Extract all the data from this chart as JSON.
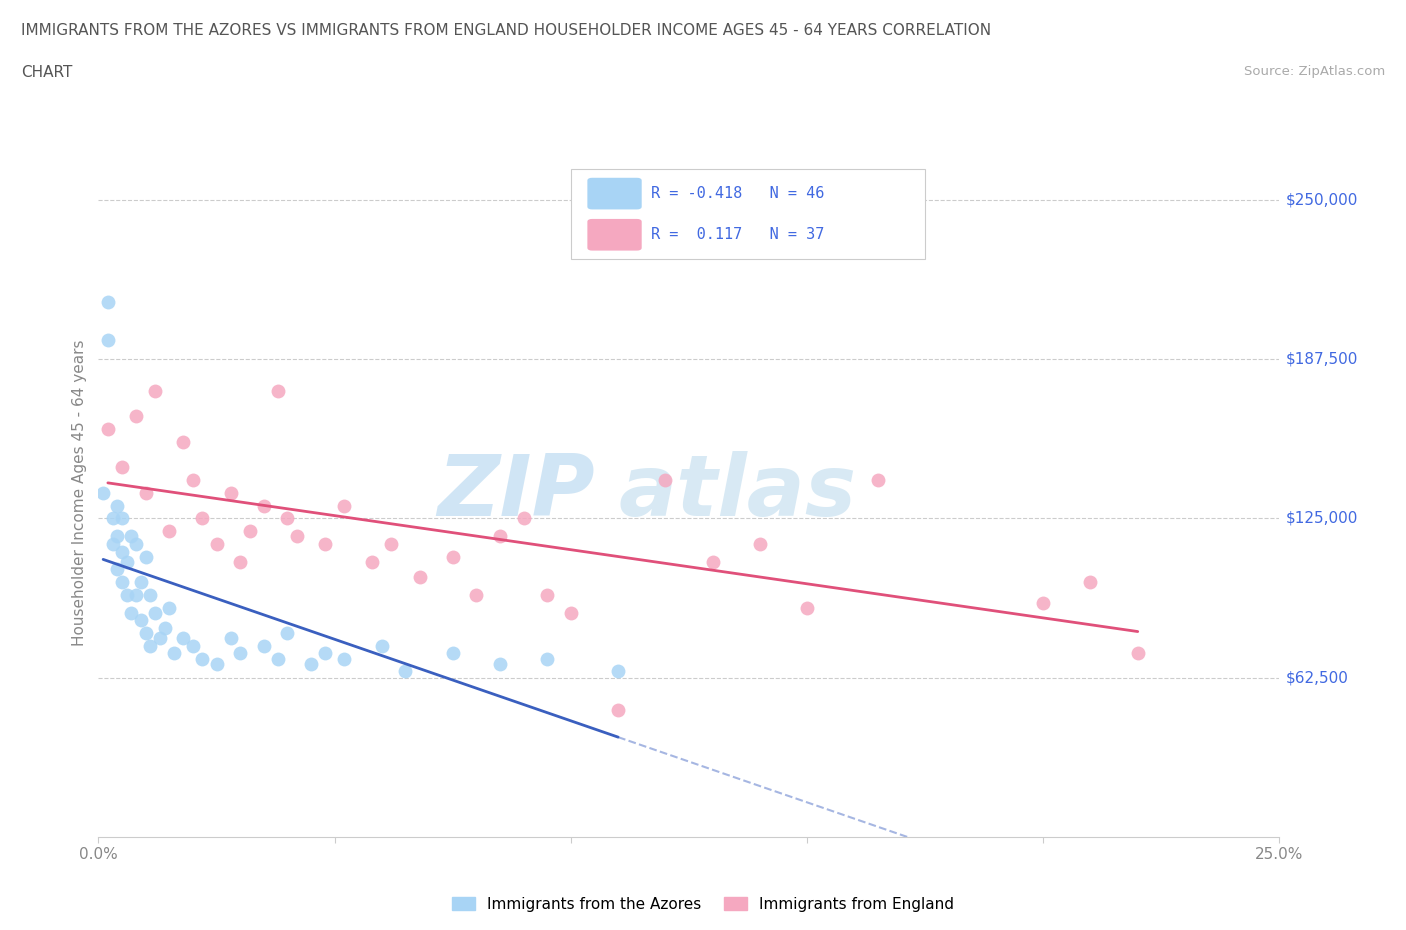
{
  "title_line1": "IMMIGRANTS FROM THE AZORES VS IMMIGRANTS FROM ENGLAND HOUSEHOLDER INCOME AGES 45 - 64 YEARS CORRELATION",
  "title_line2": "CHART",
  "source_text": "Source: ZipAtlas.com",
  "ylabel": "Householder Income Ages 45 - 64 years",
  "xlim": [
    0.0,
    0.25
  ],
  "ylim": [
    0,
    270000
  ],
  "ytick_positions": [
    62500,
    125000,
    187500,
    250000
  ],
  "ytick_labels": [
    "$62,500",
    "$125,000",
    "$187,500",
    "$250,000"
  ],
  "xticks": [
    0.0,
    0.05,
    0.1,
    0.15,
    0.2,
    0.25
  ],
  "xtick_labels": [
    "0.0%",
    "",
    "",
    "",
    "",
    "25.0%"
  ],
  "legend_labels": [
    "Immigrants from the Azores",
    "Immigrants from England"
  ],
  "azores_color": "#a8d4f5",
  "england_color": "#f5a8c0",
  "azores_line_color": "#3a5fbf",
  "england_line_color": "#e0507a",
  "grid_color": "#cccccc",
  "title_color": "#555555",
  "right_label_color": "#4169E1",
  "R_azores": -0.418,
  "N_azores": 46,
  "R_england": 0.117,
  "N_england": 37,
  "azores_x": [
    0.001,
    0.002,
    0.002,
    0.003,
    0.003,
    0.004,
    0.004,
    0.004,
    0.005,
    0.005,
    0.005,
    0.006,
    0.006,
    0.007,
    0.007,
    0.008,
    0.008,
    0.009,
    0.009,
    0.01,
    0.01,
    0.011,
    0.011,
    0.012,
    0.013,
    0.014,
    0.015,
    0.016,
    0.018,
    0.02,
    0.022,
    0.025,
    0.028,
    0.03,
    0.035,
    0.038,
    0.04,
    0.045,
    0.048,
    0.052,
    0.06,
    0.065,
    0.075,
    0.085,
    0.095,
    0.11
  ],
  "azores_y": [
    135000,
    210000,
    195000,
    125000,
    115000,
    130000,
    118000,
    105000,
    125000,
    112000,
    100000,
    108000,
    95000,
    118000,
    88000,
    115000,
    95000,
    100000,
    85000,
    110000,
    80000,
    95000,
    75000,
    88000,
    78000,
    82000,
    90000,
    72000,
    78000,
    75000,
    70000,
    68000,
    78000,
    72000,
    75000,
    70000,
    80000,
    68000,
    72000,
    70000,
    75000,
    65000,
    72000,
    68000,
    70000,
    65000
  ],
  "england_x": [
    0.002,
    0.005,
    0.008,
    0.01,
    0.012,
    0.015,
    0.018,
    0.02,
    0.022,
    0.025,
    0.028,
    0.03,
    0.032,
    0.035,
    0.038,
    0.04,
    0.042,
    0.048,
    0.052,
    0.058,
    0.062,
    0.068,
    0.075,
    0.08,
    0.085,
    0.09,
    0.095,
    0.1,
    0.11,
    0.12,
    0.13,
    0.14,
    0.15,
    0.165,
    0.2,
    0.21,
    0.22
  ],
  "england_y": [
    160000,
    145000,
    165000,
    135000,
    175000,
    120000,
    155000,
    140000,
    125000,
    115000,
    135000,
    108000,
    120000,
    130000,
    175000,
    125000,
    118000,
    115000,
    130000,
    108000,
    115000,
    102000,
    110000,
    95000,
    118000,
    125000,
    95000,
    88000,
    50000,
    140000,
    108000,
    115000,
    90000,
    140000,
    92000,
    100000,
    72000
  ]
}
